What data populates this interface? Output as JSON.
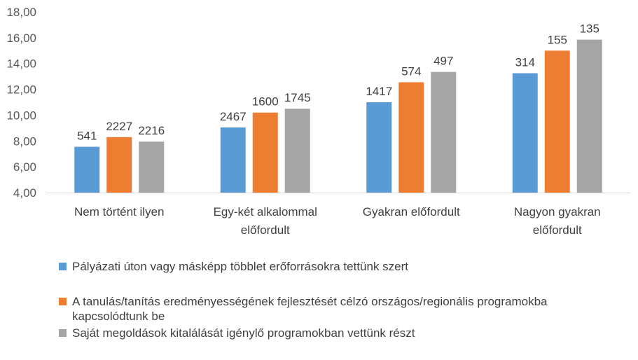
{
  "chart_data": {
    "type": "bar",
    "categories": [
      "Nem történt ilyen",
      "Egy-két alkalommal előfordult",
      "Gyakran előfordult",
      "Nagyon gyakran előfordult"
    ],
    "category_lines": [
      [
        "Nem történt ilyen"
      ],
      [
        "Egy-két alkalommal",
        "előfordult"
      ],
      [
        "Gyakran előfordult"
      ],
      [
        "Nagyon gyakran",
        "előfordult"
      ]
    ],
    "series": [
      {
        "name": "Pályázati úton vagy másképp többlet erőforrásokra tettünk szert",
        "color": "#5b9bd5",
        "values": [
          7.55,
          9.05,
          11.0,
          13.25
        ],
        "labels": [
          "541",
          "2467",
          "1417",
          "314"
        ]
      },
      {
        "name": "A tanulás/tanítás eredményességének fejlesztését célzó országos/regionális programokba kapcsolódtunk be",
        "color": "#ed7d31",
        "values": [
          8.3,
          10.2,
          12.55,
          15.0
        ],
        "labels": [
          "2227",
          "1600",
          "574",
          "155"
        ]
      },
      {
        "name": "Saját megoldások kitalálását igénylő programokban vettünk részt",
        "color": "#a5a5a5",
        "values": [
          7.95,
          10.5,
          13.35,
          15.85
        ],
        "labels": [
          "2216",
          "1745",
          "497",
          "135"
        ]
      }
    ],
    "ylim": [
      4,
      18
    ],
    "yticks": [
      "4,00",
      "6,00",
      "8,00",
      "10,00",
      "12,00",
      "14,00",
      "16,00",
      "18,00"
    ],
    "grid": false,
    "legend_position": "bottom",
    "title": "",
    "xlabel": "",
    "ylabel": ""
  }
}
